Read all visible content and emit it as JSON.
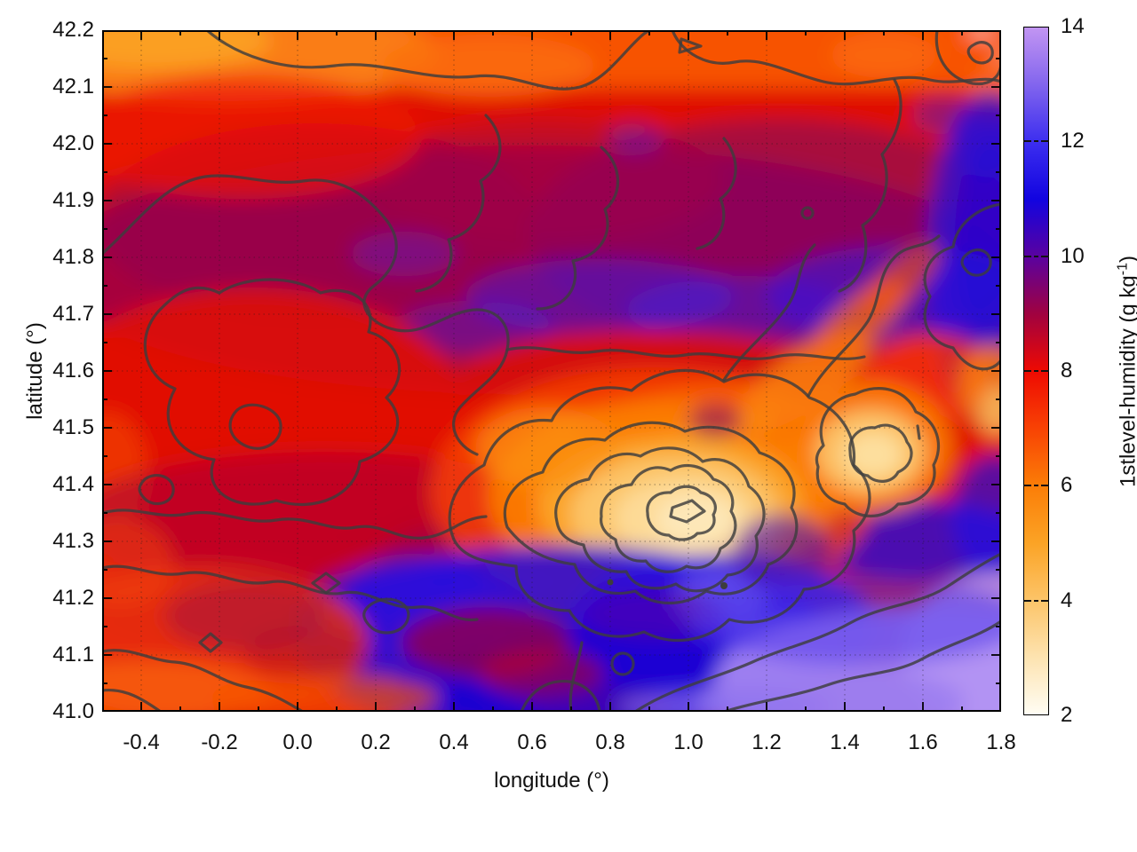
{
  "chart_data": {
    "type": "heatmap",
    "title": "",
    "xlabel": "longitude (°)",
    "ylabel": "latitude (°)",
    "xlim": [
      -0.5,
      1.8
    ],
    "ylim": [
      41.0,
      42.2
    ],
    "grid": "dotted dark lines at major ticks",
    "overlay": "unlabeled dark-gray terrain contour lines",
    "legend": "none",
    "xaxis": {
      "tick_values": [
        -0.4,
        -0.2,
        0.0,
        0.2,
        0.4,
        0.6,
        0.8,
        1.0,
        1.2,
        1.4,
        1.6,
        1.8
      ],
      "tick_labels": [
        "-0.4",
        "-0.2",
        "0.0",
        "0.2",
        "0.4",
        "0.6",
        "0.8",
        "1.0",
        "1.2",
        "1.4",
        "1.6",
        "1.8"
      ],
      "minor_tick_step": 0.1
    },
    "yaxis": {
      "tick_values": [
        41.0,
        41.1,
        41.2,
        41.3,
        41.4,
        41.5,
        41.6,
        41.7,
        41.8,
        41.9,
        42.0,
        42.1,
        42.2
      ],
      "tick_labels": [
        "41.0",
        "41.1",
        "41.2",
        "41.3",
        "41.4",
        "41.5",
        "41.6",
        "41.7",
        "41.8",
        "41.9",
        "42.0",
        "42.1",
        "42.2"
      ],
      "minor_tick_step": 0.05
    },
    "colorbar": {
      "label": "1stlevel-humidity (g kg⁻¹)",
      "label_parts": {
        "pre": "1stlevel-humidity (g kg",
        "sup": "-1",
        "post": ")"
      },
      "range": [
        2,
        14
      ],
      "tick_values": [
        2,
        4,
        6,
        8,
        10,
        12,
        14
      ],
      "tick_labels": [
        "2",
        "4",
        "6",
        "8",
        "10",
        "12",
        "14"
      ],
      "palette": [
        {
          "value": 2,
          "color": "#fffdf4"
        },
        {
          "value": 3,
          "color": "#fde3b0"
        },
        {
          "value": 4,
          "color": "#fcc468"
        },
        {
          "value": 5,
          "color": "#fba325"
        },
        {
          "value": 6,
          "color": "#fb7d07"
        },
        {
          "value": 7,
          "color": "#f84204"
        },
        {
          "value": 8,
          "color": "#ee0a02"
        },
        {
          "value": 9,
          "color": "#a00240"
        },
        {
          "value": 10,
          "color": "#5a02a0"
        },
        {
          "value": 11,
          "color": "#1204e0"
        },
        {
          "value": 12,
          "color": "#3c2eef"
        },
        {
          "value": 13,
          "color": "#8265ee"
        },
        {
          "value": 14,
          "color": "#c295f2"
        }
      ]
    },
    "field_sample": {
      "description": "approximate 1st-level humidity (g/kg) read from the colors, sampled on a lon x lat grid; rows ordered north (42.2) to south (41.0)",
      "lons": [
        -0.4,
        -0.2,
        0.0,
        0.2,
        0.4,
        0.6,
        0.8,
        1.0,
        1.2,
        1.4,
        1.6,
        1.8
      ],
      "lats": [
        42.2,
        42.1,
        42.0,
        41.9,
        41.8,
        41.7,
        41.6,
        41.5,
        41.4,
        41.3,
        41.2,
        41.1,
        41.0
      ],
      "values": [
        [
          6.5,
          6.0,
          6.5,
          7.0,
          7.0,
          7.0,
          7.5,
          7.0,
          7.0,
          6.5,
          7.5,
          7.0
        ],
        [
          7.5,
          7.5,
          7.5,
          8.0,
          8.0,
          8.5,
          8.5,
          9.0,
          9.0,
          9.5,
          9.0,
          9.5
        ],
        [
          8.5,
          8.0,
          8.5,
          8.5,
          8.0,
          8.5,
          9.0,
          9.5,
          9.5,
          9.5,
          10.5,
          10.0
        ],
        [
          9.0,
          9.5,
          9.5,
          9.0,
          9.5,
          10.0,
          9.5,
          10.0,
          10.0,
          10.5,
          11.0,
          11.5
        ],
        [
          9.0,
          9.5,
          10.0,
          10.0,
          10.5,
          10.5,
          10.0,
          10.0,
          10.5,
          10.0,
          11.0,
          11.5
        ],
        [
          8.5,
          9.0,
          9.5,
          9.5,
          10.0,
          9.5,
          9.0,
          8.0,
          8.5,
          8.0,
          9.5,
          11.5
        ],
        [
          8.0,
          8.5,
          9.0,
          9.0,
          8.5,
          8.0,
          7.5,
          7.0,
          7.0,
          6.5,
          8.5,
          11.5
        ],
        [
          8.5,
          8.5,
          8.5,
          9.0,
          9.0,
          7.5,
          6.0,
          5.5,
          6.5,
          5.0,
          7.0,
          10.5
        ],
        [
          8.5,
          8.0,
          8.5,
          9.5,
          10.0,
          7.0,
          4.5,
          3.5,
          5.5,
          4.0,
          6.0,
          9.0
        ],
        [
          8.0,
          8.5,
          9.0,
          10.0,
          10.5,
          7.5,
          4.5,
          3.5,
          4.5,
          8.0,
          10.5,
          10.5
        ],
        [
          8.5,
          9.0,
          8.5,
          10.0,
          11.0,
          10.5,
          7.5,
          6.0,
          9.5,
          11.0,
          11.5,
          12.0
        ],
        [
          8.0,
          7.5,
          9.0,
          9.5,
          11.0,
          11.5,
          10.5,
          9.0,
          11.5,
          12.0,
          12.5,
          13.0
        ],
        [
          7.5,
          7.0,
          7.5,
          8.5,
          10.5,
          12.0,
          12.5,
          11.5,
          12.5,
          13.0,
          13.5,
          13.5
        ]
      ]
    }
  }
}
